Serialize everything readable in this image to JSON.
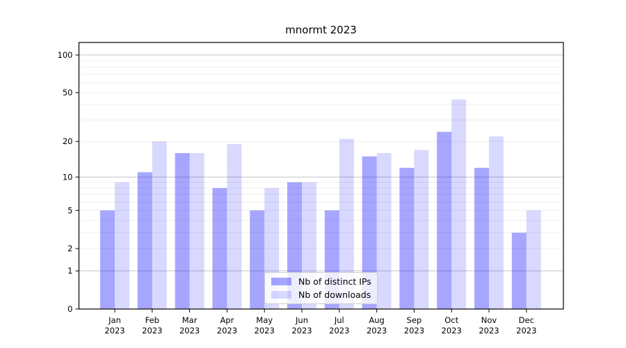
{
  "figure": {
    "title": "mnormt 2023"
  },
  "chart_data": {
    "type": "bar",
    "title": "mnormt 2023",
    "xlabel": "",
    "ylabel": "",
    "y_scale": "log10(1+x)",
    "grid": true,
    "legend_position": "bottom-center-inside",
    "categories": [
      "Jan 2023",
      "Feb 2023",
      "Mar 2023",
      "Apr 2023",
      "May 2023",
      "Jun 2023",
      "Jul 2023",
      "Aug 2023",
      "Sep 2023",
      "Oct 2023",
      "Nov 2023",
      "Dec 2023"
    ],
    "x_tick_labels": [
      [
        "Jan",
        "2023"
      ],
      [
        "Feb",
        "2023"
      ],
      [
        "Mar",
        "2023"
      ],
      [
        "Apr",
        "2023"
      ],
      [
        "May",
        "2023"
      ],
      [
        "Jun",
        "2023"
      ],
      [
        "Jul",
        "2023"
      ],
      [
        "Aug",
        "2023"
      ],
      [
        "Sep",
        "2023"
      ],
      [
        "Oct",
        "2023"
      ],
      [
        "Nov",
        "2023"
      ],
      [
        "Dec",
        "2023"
      ]
    ],
    "series": [
      {
        "name": "Nb of distinct IPs",
        "color": "rgba(0,0,255,0.35)",
        "color_hex": "#a6a6ff",
        "values": [
          5,
          11,
          16,
          8,
          5,
          9,
          5,
          15,
          12,
          24,
          12,
          3
        ]
      },
      {
        "name": "Nb of downloads",
        "color": "rgba(0,0,255,0.15)",
        "color_hex": "#d9d9ff",
        "values": [
          9,
          20,
          16,
          19,
          8,
          9,
          21,
          16,
          17,
          44,
          22,
          5
        ]
      }
    ],
    "y_axis": {
      "ticks": [
        0,
        1,
        2,
        5,
        10,
        20,
        50,
        100
      ],
      "tick_labels": [
        "0",
        "1",
        "2",
        "5",
        "10",
        "20",
        "50",
        "100"
      ],
      "major_gridlines": [
        1,
        10,
        100
      ],
      "minor_gridlines": [
        2,
        3,
        4,
        5,
        6,
        7,
        8,
        9,
        20,
        30,
        40,
        50,
        60,
        70,
        80,
        90
      ],
      "ylim": [
        0,
        126
      ]
    },
    "colors": {
      "spine": "#000000",
      "major_grid": "#c4c4c4",
      "minor_grid": "#efefef",
      "tick_text": "#000000"
    }
  }
}
